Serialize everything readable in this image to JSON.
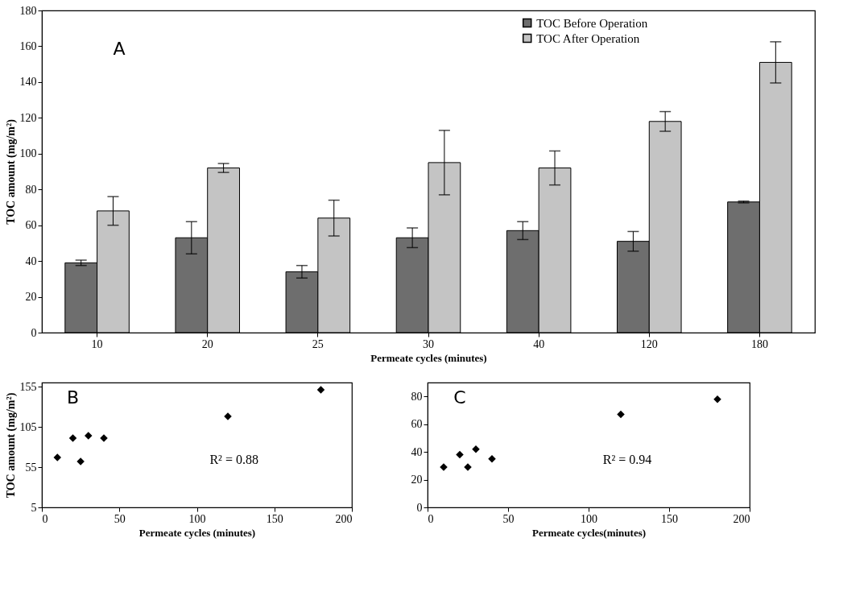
{
  "chart_data": [
    {
      "type": "bar",
      "xlabel": "Permeate cycles (minutes)",
      "ylabel": "TOC amount (mg/m²)",
      "annotations": [
        "A"
      ],
      "categories": [
        "10",
        "20",
        "25",
        "30",
        "40",
        "120",
        "180"
      ],
      "series": [
        {
          "name": "TOC Before Operation",
          "color": "#6e6e6e",
          "values": [
            39,
            53,
            34,
            53,
            57,
            51,
            73
          ],
          "errors": [
            1.5,
            9,
            3.5,
            5.5,
            5,
            5.5,
            0.5
          ]
        },
        {
          "name": "TOC After Operation",
          "color": "#c4c4c4",
          "values": [
            68,
            92,
            64,
            95,
            92,
            118,
            151
          ],
          "errors": [
            8,
            2.5,
            10,
            18,
            9.5,
            5.5,
            11.5
          ]
        }
      ],
      "ylim": [
        0,
        180
      ],
      "yticks": [
        0,
        20,
        40,
        60,
        80,
        100,
        120,
        140,
        160,
        180
      ],
      "legend": "top right",
      "grid": false
    },
    {
      "type": "scatter",
      "xlabel": "Permeate cycles  (minutes)",
      "ylabel": "TOC amount (mg/m²)",
      "annotations": [
        "B",
        "R² = 0.88"
      ],
      "x": [
        10,
        20,
        25,
        30,
        40,
        120,
        180
      ],
      "series": [
        {
          "color": "#000000",
          "values": [
            67,
            91,
            62,
            94,
            91,
            118,
            151
          ]
        }
      ],
      "xlim": [
        0,
        200
      ],
      "xticks": [
        0,
        50,
        100,
        150,
        200
      ],
      "ylim": [
        5,
        160
      ],
      "yticks": [
        5,
        55,
        105,
        155
      ],
      "marker": "diamond",
      "grid": false
    },
    {
      "type": "scatter",
      "xlabel": "Permeate cycles(minutes)",
      "annotations": [
        "C",
        "R² = 0.94"
      ],
      "x": [
        10,
        20,
        25,
        30,
        40,
        120,
        180
      ],
      "series": [
        {
          "color": "#000000",
          "values": [
            29,
            38,
            29,
            42,
            35,
            67,
            78
          ]
        }
      ],
      "xlim": [
        0,
        200
      ],
      "xticks": [
        0,
        50,
        100,
        150,
        200
      ],
      "ylim": [
        0,
        90
      ],
      "yticks": [
        0,
        20,
        40,
        60,
        80
      ],
      "marker": "diamond",
      "grid": false
    }
  ]
}
